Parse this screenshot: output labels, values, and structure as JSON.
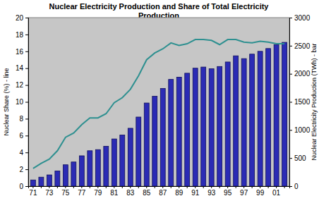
{
  "chart_data": {
    "type": "bar",
    "title": "Nuclear Electricity Production and Share of Total Electricity Production",
    "y_label": "Nuclear Share (%) - line",
    "y2_label": "Nuclear Electricity Production (TWh) - bar",
    "categories": [
      "71",
      null,
      "73",
      null,
      "75",
      null,
      "77",
      null,
      "79",
      null,
      "81",
      null,
      "83",
      null,
      "85",
      null,
      "87",
      null,
      "89",
      null,
      "91",
      null,
      "93",
      null,
      "95",
      null,
      "97",
      null,
      "99",
      null,
      "01",
      null
    ],
    "series": [
      {
        "type": "bar",
        "axis": "y2",
        "color": "#2b2bb5",
        "values": [
          110,
          160,
          200,
          270,
          380,
          430,
          540,
          630,
          650,
          710,
          840,
          910,
          1030,
          1230,
          1480,
          1600,
          1740,
          1900,
          1940,
          2010,
          2100,
          2120,
          2090,
          2130,
          2210,
          2320,
          2270,
          2350,
          2400,
          2450,
          2520,
          2560
        ]
      },
      {
        "type": "line",
        "axis": "y",
        "color": "#2e9090",
        "values": [
          2.1,
          2.7,
          3.2,
          4.2,
          5.8,
          6.3,
          7.3,
          8.1,
          8.1,
          8.6,
          9.9,
          10.5,
          11.5,
          13.1,
          15.0,
          15.8,
          16.3,
          17.0,
          16.7,
          16.9,
          17.4,
          17.4,
          17.3,
          16.8,
          17.4,
          17.4,
          17.1,
          17.0,
          17.2,
          17.1,
          16.9,
          16.9
        ]
      }
    ],
    "ylim": [
      0,
      20
    ],
    "yticks": [
      0,
      2,
      4,
      6,
      8,
      10,
      12,
      14,
      16,
      18,
      20
    ],
    "y2lim": [
      0,
      3000
    ],
    "y2ticks": [
      0,
      500,
      1000,
      1500,
      2000,
      2500,
      3000
    ],
    "grid": false
  }
}
